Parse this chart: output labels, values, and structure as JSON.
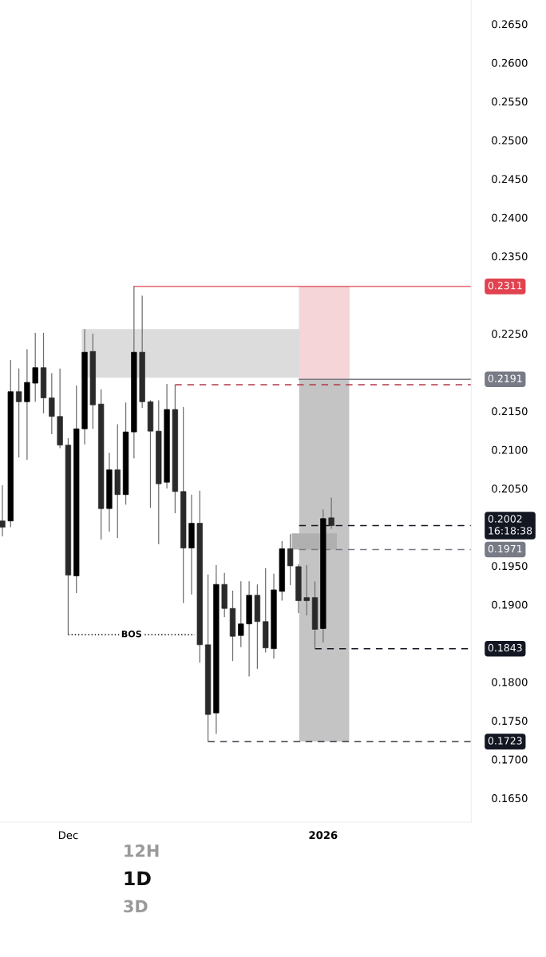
{
  "chart_data": {
    "type": "candlestick",
    "colors": [
      "#2a2a2a",
      "#000000",
      "#2a2a2a",
      "#000000",
      "#000000",
      "#2a2a2a",
      "#2a2a2a",
      "#2a2a2a",
      "#2a2a2a",
      "#000000",
      "#000000",
      "#2a2a2a",
      "#2a2a2a",
      "#000000",
      "#2a2a2a",
      "#000000",
      "#000000",
      "#2a2a2a",
      "#2a2a2a",
      "#2a2a2a",
      "#000000",
      "#2a2a2a",
      "#2a2a2a",
      "#000000",
      "#2a2a2a",
      "#2a2a2a",
      "#000000",
      "#2a2a2a",
      "#2a2a2a",
      "#000000",
      "#000000",
      "#2a2a2a",
      "#2a2a2a",
      "#000000",
      "#000000",
      "#2a2a2a",
      "#2a2a2a",
      "#2a2a2a",
      "#2a2a2a",
      "#000000",
      "#2a2a2a"
    ],
    "x": [
      "2025-11-23",
      "2025-11-24",
      "2025-11-25",
      "2025-11-26",
      "2025-11-27",
      "2025-11-28",
      "2025-11-29",
      "2025-11-30",
      "2025-12-01",
      "2025-12-02",
      "2025-12-03",
      "2025-12-04",
      "2025-12-05",
      "2025-12-06",
      "2025-12-07",
      "2025-12-08",
      "2025-12-09",
      "2025-12-10",
      "2025-12-11",
      "2025-12-12",
      "2025-12-13",
      "2025-12-14",
      "2025-12-15",
      "2025-12-16",
      "2025-12-17",
      "2025-12-18",
      "2025-12-19",
      "2025-12-20",
      "2025-12-21",
      "2025-12-22",
      "2025-12-23",
      "2025-12-24",
      "2025-12-25",
      "2025-12-26",
      "2025-12-27",
      "2025-12-28",
      "2025-12-29",
      "2025-12-30",
      "2025-12-31",
      "2026-01-01",
      "2026-01-02"
    ],
    "ohlc": [
      [
        0.2008,
        0.2054,
        0.1988,
        0.2
      ],
      [
        0.2008,
        0.2216,
        0.2,
        0.2175
      ],
      [
        0.2175,
        0.2205,
        0.209,
        0.2162
      ],
      [
        0.2162,
        0.223,
        0.2087,
        0.2187
      ],
      [
        0.2186,
        0.2251,
        0.2162,
        0.2206
      ],
      [
        0.2206,
        0.2251,
        0.2147,
        0.2167
      ],
      [
        0.2167,
        0.2199,
        0.212,
        0.2143
      ],
      [
        0.2143,
        0.2205,
        0.2102,
        0.2106
      ],
      [
        0.2106,
        0.2115,
        0.1861,
        0.1938
      ],
      [
        0.1937,
        0.2183,
        0.1915,
        0.2127
      ],
      [
        0.2127,
        0.2256,
        0.2107,
        0.2226
      ],
      [
        0.2227,
        0.225,
        0.2127,
        0.2158
      ],
      [
        0.2159,
        0.2178,
        0.1984,
        0.2024
      ],
      [
        0.2024,
        0.2096,
        0.1994,
        0.2074
      ],
      [
        0.2074,
        0.2133,
        0.1986,
        0.2042
      ],
      [
        0.2042,
        0.2161,
        0.2029,
        0.2123
      ],
      [
        0.2123,
        0.2311,
        0.2089,
        0.2226
      ],
      [
        0.2226,
        0.2299,
        0.2154,
        0.2162
      ],
      [
        0.2162,
        0.2164,
        0.2025,
        0.2124
      ],
      [
        0.2124,
        0.2164,
        0.1978,
        0.2056
      ],
      [
        0.2058,
        0.2185,
        0.205,
        0.2152
      ],
      [
        0.2152,
        0.2184,
        0.2018,
        0.2046
      ],
      [
        0.2046,
        0.2155,
        0.1902,
        0.1973
      ],
      [
        0.1973,
        0.2042,
        0.1913,
        0.2005
      ],
      [
        0.2005,
        0.2047,
        0.1825,
        0.1848
      ],
      [
        0.1848,
        0.1939,
        0.1723,
        0.1758
      ],
      [
        0.176,
        0.1951,
        0.1733,
        0.1926
      ],
      [
        0.1926,
        0.1941,
        0.1884,
        0.1895
      ],
      [
        0.1895,
        0.1918,
        0.1827,
        0.1859
      ],
      [
        0.186,
        0.193,
        0.1845,
        0.1875
      ],
      [
        0.1875,
        0.193,
        0.1807,
        0.1912
      ],
      [
        0.1912,
        0.1926,
        0.1817,
        0.1878
      ],
      [
        0.1878,
        0.1947,
        0.1838,
        0.1844
      ],
      [
        0.1843,
        0.194,
        0.183,
        0.1919
      ],
      [
        0.1917,
        0.1982,
        0.1905,
        0.1972
      ],
      [
        0.1972,
        0.1991,
        0.1925,
        0.195
      ],
      [
        0.1949,
        0.1952,
        0.1889,
        0.1905
      ],
      [
        0.1909,
        0.1951,
        0.1886,
        0.1905
      ],
      [
        0.1909,
        0.193,
        0.1843,
        0.1868
      ],
      [
        0.1869,
        0.2023,
        0.1851,
        0.2011
      ],
      [
        0.2012,
        0.2038,
        0.1998,
        0.2002
      ]
    ],
    "xlim": [
      "2025-11-22T17:00",
      "2026-01-19"
    ],
    "xticks": [
      {
        "value": "2025-12-01",
        "label": "Dec"
      },
      {
        "value": "2026-01-01",
        "label": "2026"
      }
    ],
    "ylim": [
      0.1619,
      0.2681
    ],
    "yticks": [
      {
        "value": 0.165,
        "label": "0.1650"
      },
      {
        "value": 0.17,
        "label": "0.1700"
      },
      {
        "value": 0.175,
        "label": "0.1750"
      },
      {
        "value": 0.18,
        "label": "0.1800"
      },
      {
        "value": 0.19,
        "label": "0.1900"
      },
      {
        "value": 0.195,
        "label": "0.1950"
      },
      {
        "value": 0.205,
        "label": "0.2050"
      },
      {
        "value": 0.21,
        "label": "0.2100"
      },
      {
        "value": 0.215,
        "label": "0.2150"
      },
      {
        "value": 0.225,
        "label": "0.2250"
      },
      {
        "value": 0.235,
        "label": "0.2350"
      },
      {
        "value": 0.24,
        "label": "0.2400"
      },
      {
        "value": 0.245,
        "label": "0.2450"
      },
      {
        "value": 0.25,
        "label": "0.2500"
      },
      {
        "value": 0.255,
        "label": "0.2550"
      },
      {
        "value": 0.26,
        "label": "0.2600"
      },
      {
        "value": 0.265,
        "label": "0.2650"
      }
    ],
    "bands": [
      {
        "axis": "x",
        "from": "2025-12-29T02:00",
        "to": "2026-01-04T04:00",
        "color": "#c4c4c4"
      },
      {
        "axis": "y",
        "from": 0.2193,
        "to": 0.2256,
        "color": "#dcdcdc"
      },
      {
        "axis": "y",
        "from": 0.2191,
        "to": 0.2311,
        "color": "#f5d5d7"
      },
      {
        "axis": "y",
        "from": 0.1971,
        "to": 0.1992,
        "color": "#b0b0b0"
      }
    ],
    "ref_lines": [
      {
        "axis": "y",
        "value": 0.2311,
        "label": "0.2311",
        "color": "#e0434f",
        "line_style": "solid"
      },
      {
        "axis": "y",
        "value": 0.2184,
        "color": "#b23a48",
        "line_style": "dashed"
      },
      {
        "axis": "y",
        "value": 0.2191,
        "label": "0.2191",
        "color": "#787b86",
        "line_style": "solid"
      },
      {
        "axis": "y",
        "value": 0.2002,
        "label": "0.2002\n16:18:38",
        "color": "#131722",
        "line_style": "dashed"
      },
      {
        "axis": "y",
        "value": 0.1971,
        "label": "0.1971",
        "color": "#787b86",
        "line_style": "dashed"
      },
      {
        "axis": "y",
        "value": 0.1843,
        "label": "0.1843",
        "color": "#131722",
        "line_style": "dashed"
      },
      {
        "axis": "y",
        "value": 0.1723,
        "label": "0.1723",
        "color": "#131722",
        "line_style": "dashed"
      },
      {
        "axis": "y",
        "value": 0.1861,
        "label": "BOS",
        "color": "#000000",
        "line_style": "dotted"
      }
    ],
    "annotations": [
      "12H",
      "1D",
      "3D"
    ]
  }
}
